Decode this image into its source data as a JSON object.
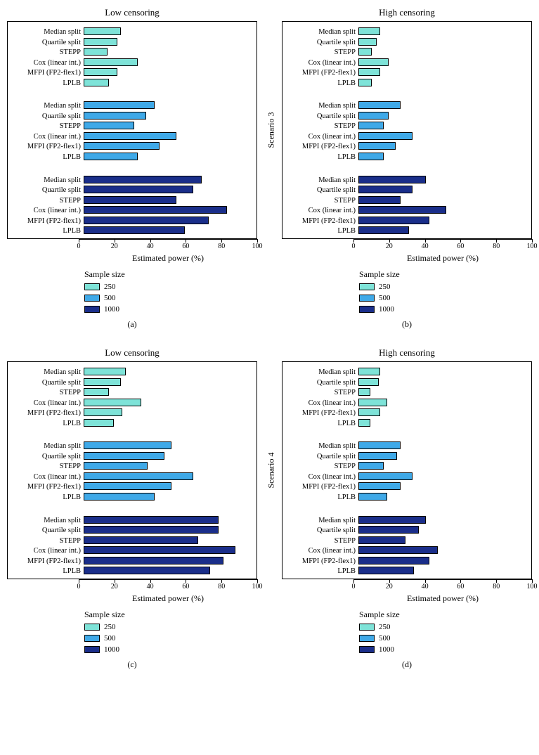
{
  "colors": {
    "c250": "#7ee3d8",
    "c500": "#3fa9e8",
    "c1000": "#1a2e8a",
    "border": "#000000",
    "background": "#ffffff"
  },
  "methods": [
    "Median split",
    "Quartile split",
    "STEPP",
    "Cox (linear int.)",
    "MFPI (FP2-flex1)",
    "LPLB"
  ],
  "x_axis": {
    "title": "Estimated power (%)",
    "min": 0,
    "max": 100,
    "step": 20,
    "ticks": [
      0,
      20,
      40,
      60,
      80,
      100
    ]
  },
  "legend": {
    "title": "Sample size",
    "items": [
      {
        "label": "250",
        "color_key": "c250"
      },
      {
        "label": "500",
        "color_key": "c500"
      },
      {
        "label": "1000",
        "color_key": "c1000"
      }
    ]
  },
  "panels": [
    {
      "id": "a",
      "title": "Low censoring",
      "y_label": "Scenario 3",
      "letter": "(a)",
      "groups": [
        {
          "color_key": "c250",
          "values": [
            22,
            20,
            14,
            32,
            20,
            15
          ]
        },
        {
          "color_key": "c500",
          "values": [
            42,
            37,
            30,
            55,
            45,
            32
          ]
        },
        {
          "color_key": "c1000",
          "values": [
            70,
            65,
            55,
            85,
            74,
            60
          ]
        }
      ]
    },
    {
      "id": "b",
      "title": "High censoring",
      "y_label": "Scenario 3",
      "letter": "(b)",
      "groups": [
        {
          "color_key": "c250",
          "values": [
            13,
            11,
            8,
            18,
            13,
            8
          ]
        },
        {
          "color_key": "c500",
          "values": [
            25,
            18,
            15,
            32,
            22,
            15
          ]
        },
        {
          "color_key": "c1000",
          "values": [
            40,
            32,
            25,
            52,
            42,
            30
          ]
        }
      ]
    },
    {
      "id": "c",
      "title": "Low censoring",
      "y_label": "Scenario 4",
      "letter": "(c)",
      "groups": [
        {
          "color_key": "c250",
          "values": [
            25,
            22,
            15,
            34,
            23,
            18
          ]
        },
        {
          "color_key": "c500",
          "values": [
            52,
            48,
            38,
            65,
            52,
            42
          ]
        },
        {
          "color_key": "c1000",
          "values": [
            80,
            80,
            68,
            90,
            83,
            75
          ]
        }
      ]
    },
    {
      "id": "d",
      "title": "High censoring",
      "y_label": "Scenario 4",
      "letter": "(d)",
      "groups": [
        {
          "color_key": "c250",
          "values": [
            13,
            12,
            7,
            17,
            13,
            7
          ]
        },
        {
          "color_key": "c500",
          "values": [
            25,
            23,
            15,
            32,
            25,
            17
          ]
        },
        {
          "color_key": "c1000",
          "values": [
            40,
            36,
            28,
            47,
            42,
            33
          ]
        }
      ]
    }
  ]
}
